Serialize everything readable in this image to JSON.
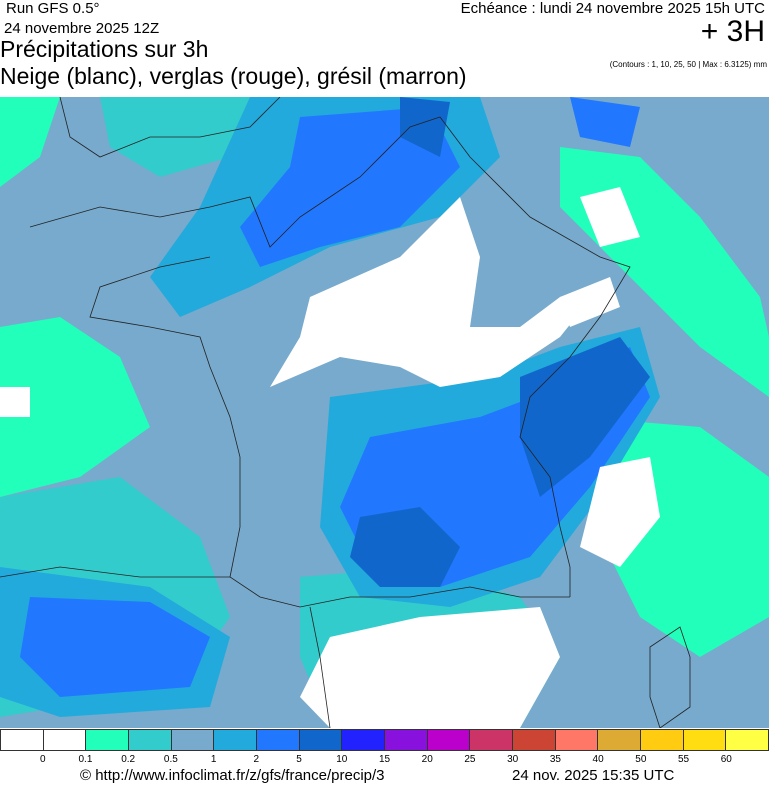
{
  "header": {
    "run": "Run GFS 0.5°",
    "run_date": "24 novembre 2025 12Z",
    "title_line1": "Précipitations sur 3h",
    "title_line2": "Neige (blanc), verglas (rouge), grésil (marron)",
    "echeance": "Echéance : lundi 24 novembre 2025 15h UTC",
    "lead_time": "+ 3H",
    "contours_note": "(Contours : 1, 10, 25, 50 | Max : 6.3125) mm"
  },
  "legend": {
    "colors": [
      "#ffffff",
      "#ffffff",
      "#22ffbb",
      "#33cccc",
      "#77aacc",
      "#22aadd",
      "#2277ff",
      "#1166cc",
      "#2222ff",
      "#8811dd",
      "#bb00cc",
      "#cc3366",
      "#cc4433",
      "#ff7766",
      "#ddaa33",
      "#ffcc11",
      "#ffdd11",
      "#ffff44"
    ],
    "ticks": [
      "0",
      "0.1",
      "0.2",
      "0.5",
      "1",
      "2",
      "5",
      "10",
      "15",
      "20",
      "25",
      "30",
      "35",
      "40",
      "50",
      "55",
      "60"
    ]
  },
  "footer": {
    "source": "© http://www.infoclimat.fr/z/gfs/france/precip/3",
    "generated": "24 nov. 2025 15:35 UTC"
  }
}
